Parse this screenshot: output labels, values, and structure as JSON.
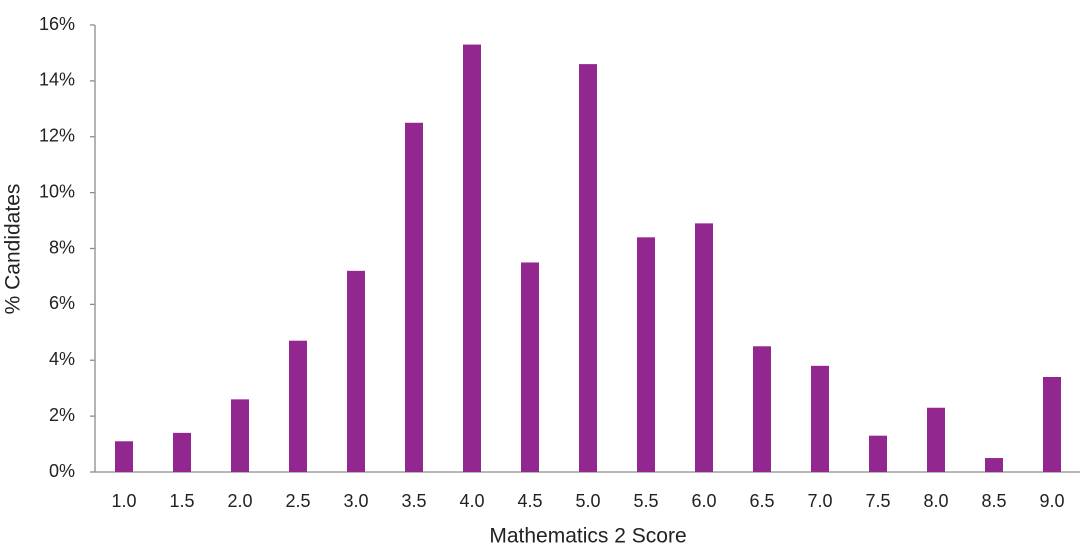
{
  "chart_data": {
    "type": "bar",
    "x_label": "Mathematics 2 Score",
    "y_label": "% Candidates",
    "categories": [
      "1.0",
      "1.5",
      "2.0",
      "2.5",
      "3.0",
      "3.5",
      "4.0",
      "4.5",
      "5.0",
      "5.5",
      "6.0",
      "6.5",
      "7.0",
      "7.5",
      "8.0",
      "8.5",
      "9.0"
    ],
    "values": [
      1.1,
      1.4,
      2.6,
      4.7,
      7.2,
      12.5,
      15.3,
      7.5,
      14.6,
      8.4,
      8.9,
      4.5,
      3.8,
      1.3,
      2.3,
      0.5,
      3.4
    ],
    "color": "#92278f",
    "ylim": [
      0,
      16
    ],
    "yticks": [
      {
        "value": 0,
        "label": "0%"
      },
      {
        "value": 2,
        "label": "2%"
      },
      {
        "value": 4,
        "label": "4%"
      },
      {
        "value": 6,
        "label": "6%"
      },
      {
        "value": 8,
        "label": "8%"
      },
      {
        "value": 10,
        "label": "10%"
      },
      {
        "value": 12,
        "label": "12%"
      },
      {
        "value": 14,
        "label": "14%"
      },
      {
        "value": 16,
        "label": "16%"
      }
    ],
    "grid": false
  }
}
